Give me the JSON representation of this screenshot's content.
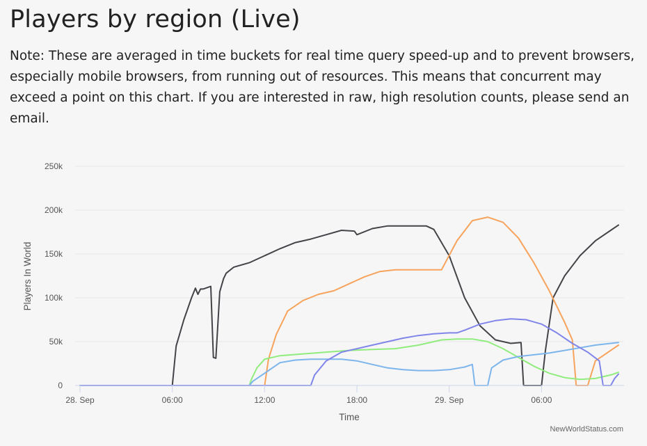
{
  "header": {
    "title": "Players by region (Live)",
    "note": "Note: These are averaged in time buckets for real time query speed-up and to prevent browsers, especially mobile browsers, from running out of resources. This means that concurrent may exceed a point on this chart. If you are interested in raw, high resolution counts, please send an email."
  },
  "credit": "NewWorldStatus.com",
  "chart_data": {
    "type": "line",
    "title": "",
    "xlabel": "Time",
    "ylabel": "Players In World",
    "xlim": [
      "2021-09-28 00:00",
      "2021-09-29 11:00"
    ],
    "ylim": [
      0,
      250000
    ],
    "x_tick_labels": [
      "28. Sep",
      "06:00",
      "12:00",
      "18:00",
      "29. Sep",
      "06:00"
    ],
    "y_tick_labels": [
      "0",
      "50k",
      "100k",
      "150k",
      "200k",
      "250k"
    ],
    "grid": true,
    "legend": "none",
    "series": [
      {
        "color": "#434348",
        "x": [
          "2021-09-28 00:00",
          "2021-09-28 06:00",
          "2021-09-28 06:15",
          "2021-09-28 06:45",
          "2021-09-28 07:15",
          "2021-09-28 07:30",
          "2021-09-28 07:40",
          "2021-09-28 07:50",
          "2021-09-28 08:00",
          "2021-09-28 08:30",
          "2021-09-28 08:40",
          "2021-09-28 08:50",
          "2021-09-28 09:05",
          "2021-09-28 09:20",
          "2021-09-28 09:30",
          "2021-09-28 10:00",
          "2021-09-28 11:00",
          "2021-09-28 12:00",
          "2021-09-28 13:00",
          "2021-09-28 14:00",
          "2021-09-28 15:00",
          "2021-09-28 16:00",
          "2021-09-28 17:00",
          "2021-09-28 17:50",
          "2021-09-28 18:00",
          "2021-09-28 19:00",
          "2021-09-28 20:00",
          "2021-09-28 21:00",
          "2021-09-28 22:00",
          "2021-09-28 22:30",
          "2021-09-28 23:00",
          "2021-09-29 00:00",
          "2021-09-29 01:00",
          "2021-09-29 02:00",
          "2021-09-29 03:00",
          "2021-09-29 04:00",
          "2021-09-29 04:40",
          "2021-09-29 04:50",
          "2021-09-29 06:00",
          "2021-09-29 06:15",
          "2021-09-29 06:45",
          "2021-09-29 07:30",
          "2021-09-29 08:30",
          "2021-09-29 09:30",
          "2021-09-29 10:30",
          "2021-09-29 11:00"
        ],
        "y": [
          0,
          0,
          45000,
          75000,
          100000,
          111000,
          104000,
          110000,
          110000,
          113000,
          32000,
          31000,
          107000,
          122000,
          128000,
          135000,
          140000,
          148000,
          156000,
          163000,
          167000,
          172000,
          177000,
          176000,
          172000,
          179000,
          182000,
          182000,
          182000,
          182000,
          178000,
          148000,
          100000,
          68000,
          52000,
          48000,
          49000,
          0,
          0,
          40000,
          100000,
          125000,
          148000,
          165000,
          177000,
          183000
        ]
      },
      {
        "color": "#f7a35c",
        "x": [
          "2021-09-28 00:00",
          "2021-09-28 12:00",
          "2021-09-28 12:15",
          "2021-09-28 12:45",
          "2021-09-28 13:30",
          "2021-09-28 14:30",
          "2021-09-28 15:30",
          "2021-09-28 16:30",
          "2021-09-28 17:30",
          "2021-09-28 18:30",
          "2021-09-28 19:30",
          "2021-09-28 20:30",
          "2021-09-28 21:30",
          "2021-09-28 22:30",
          "2021-09-28 23:30",
          "2021-09-29 00:30",
          "2021-09-29 01:30",
          "2021-09-29 02:30",
          "2021-09-29 03:30",
          "2021-09-29 04:30",
          "2021-09-29 05:30",
          "2021-09-29 06:30",
          "2021-09-29 07:30",
          "2021-09-29 08:00",
          "2021-09-29 08:15",
          "2021-09-29 09:00",
          "2021-09-29 09:30",
          "2021-09-29 10:30",
          "2021-09-29 11:00"
        ],
        "y": [
          0,
          0,
          30000,
          58000,
          85000,
          97000,
          104000,
          108000,
          116000,
          124000,
          130000,
          132000,
          132000,
          132000,
          132000,
          165000,
          188000,
          192000,
          186000,
          168000,
          140000,
          108000,
          72000,
          52000,
          0,
          0,
          28000,
          40000,
          46000
        ]
      },
      {
        "color": "#90ed7d",
        "x": [
          "2021-09-28 00:00",
          "2021-09-28 11:00",
          "2021-09-28 11:10",
          "2021-09-28 11:30",
          "2021-09-28 12:00",
          "2021-09-28 13:00",
          "2021-09-28 14:30",
          "2021-09-28 16:00",
          "2021-09-28 17:30",
          "2021-09-28 19:00",
          "2021-09-28 20:30",
          "2021-09-28 22:00",
          "2021-09-28 23:30",
          "2021-09-29 00:30",
          "2021-09-29 01:30",
          "2021-09-29 02:30",
          "2021-09-29 03:30",
          "2021-09-29 04:30",
          "2021-09-29 05:30",
          "2021-09-29 06:30",
          "2021-09-29 07:30",
          "2021-09-29 08:30",
          "2021-09-29 09:30",
          "2021-09-29 10:30",
          "2021-09-29 11:00"
        ],
        "y": [
          0,
          0,
          8000,
          20000,
          30000,
          34000,
          36000,
          38000,
          40000,
          41000,
          42000,
          46000,
          52000,
          53000,
          53000,
          50000,
          42000,
          32000,
          22000,
          14000,
          9000,
          7000,
          8000,
          12000,
          15000
        ]
      },
      {
        "color": "#7cb5ec",
        "x": [
          "2021-09-28 00:00",
          "2021-09-28 11:00",
          "2021-09-28 11:15",
          "2021-09-28 12:00",
          "2021-09-28 13:00",
          "2021-09-28 14:00",
          "2021-09-28 15:00",
          "2021-09-28 16:00",
          "2021-09-28 17:00",
          "2021-09-28 18:00",
          "2021-09-28 19:00",
          "2021-09-28 20:00",
          "2021-09-28 21:00",
          "2021-09-28 22:00",
          "2021-09-28 23:00",
          "2021-09-29 00:00",
          "2021-09-29 01:00",
          "2021-09-29 01:30",
          "2021-09-29 01:40",
          "2021-09-29 02:30",
          "2021-09-29 02:45",
          "2021-09-29 03:30",
          "2021-09-29 04:30",
          "2021-09-29 05:30",
          "2021-09-29 06:30",
          "2021-09-29 07:30",
          "2021-09-29 08:30",
          "2021-09-29 09:30",
          "2021-09-29 10:30",
          "2021-09-29 11:00"
        ],
        "y": [
          0,
          0,
          5000,
          14000,
          26000,
          29000,
          30000,
          30000,
          30000,
          28000,
          24000,
          20000,
          18000,
          17000,
          17000,
          18000,
          21000,
          24000,
          0,
          0,
          20000,
          29000,
          33000,
          35000,
          37000,
          40000,
          43000,
          46000,
          48000,
          49000
        ]
      },
      {
        "color": "#8085e9",
        "x": [
          "2021-09-28 00:00",
          "2021-09-28 15:00",
          "2021-09-28 15:15",
          "2021-09-28 16:00",
          "2021-09-28 17:00",
          "2021-09-28 18:00",
          "2021-09-28 19:00",
          "2021-09-28 20:00",
          "2021-09-28 21:00",
          "2021-09-28 22:00",
          "2021-09-28 23:00",
          "2021-09-29 00:00",
          "2021-09-29 00:30",
          "2021-09-29 01:00",
          "2021-09-29 02:00",
          "2021-09-29 03:00",
          "2021-09-29 04:00",
          "2021-09-29 05:00",
          "2021-09-29 06:00",
          "2021-09-29 07:00",
          "2021-09-29 08:00",
          "2021-09-29 09:00",
          "2021-09-29 09:45",
          "2021-09-29 10:00",
          "2021-09-29 10:30",
          "2021-09-29 10:45",
          "2021-09-29 11:00"
        ],
        "y": [
          0,
          0,
          12000,
          28000,
          38000,
          42000,
          46000,
          50000,
          54000,
          57000,
          59000,
          60000,
          60000,
          63000,
          70000,
          74000,
          76000,
          75000,
          70000,
          60000,
          48000,
          38000,
          28000,
          0,
          0,
          8000,
          13000
        ]
      }
    ]
  }
}
